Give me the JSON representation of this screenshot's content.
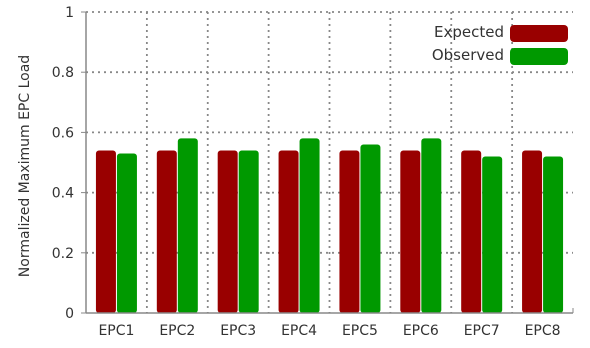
{
  "chart_data": {
    "type": "bar",
    "title": "",
    "xlabel": "",
    "ylabel": "Normalized Maximum EPC Load",
    "categories": [
      "EPC1",
      "EPC2",
      "EPC3",
      "EPC4",
      "EPC5",
      "EPC6",
      "EPC7",
      "EPC8"
    ],
    "series": [
      {
        "name": "Expected",
        "color": "#990000",
        "values": [
          0.54,
          0.54,
          0.54,
          0.54,
          0.54,
          0.54,
          0.54,
          0.54
        ]
      },
      {
        "name": "Observed",
        "color": "#009900",
        "values": [
          0.53,
          0.58,
          0.54,
          0.58,
          0.56,
          0.58,
          0.52,
          0.52
        ]
      }
    ],
    "ylim": [
      0,
      1
    ],
    "yticks": [
      0,
      0.2,
      0.4,
      0.6,
      0.8,
      1
    ],
    "ytick_labels": [
      "0",
      "0.2",
      "0.4",
      "0.6",
      "0.8",
      "1"
    ],
    "grid": true,
    "legend_position": "top-right"
  }
}
